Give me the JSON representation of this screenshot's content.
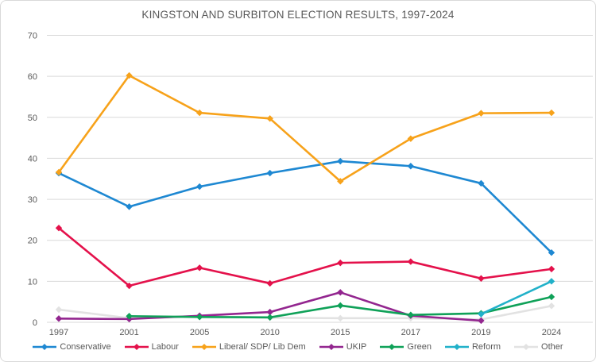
{
  "title": "KINGSTON AND SURBITON ELECTION RESULTS, 1997-2024",
  "chart_data": {
    "type": "line",
    "title": "KINGSTON AND SURBITON ELECTION RESULTS, 1997-2024",
    "xlabel": "",
    "ylabel": "",
    "ylim": [
      0,
      70
    ],
    "ytick_step": 10,
    "yticks": [
      0,
      10,
      20,
      30,
      40,
      50,
      60,
      70
    ],
    "grid": true,
    "legend_position": "bottom",
    "marker": "diamond",
    "categories": [
      "1997",
      "2001",
      "2005",
      "2010",
      "2015",
      "2017",
      "2019",
      "2024"
    ],
    "series": [
      {
        "name": "Conservative",
        "color": "#1E88D2",
        "values": [
          36.4,
          28.2,
          33.1,
          36.4,
          39.3,
          38.1,
          33.9,
          17.0
        ]
      },
      {
        "name": "Labour",
        "color": "#E4114B",
        "values": [
          23.0,
          8.9,
          13.3,
          9.5,
          14.5,
          14.8,
          10.7,
          13.0
        ]
      },
      {
        "name": "Liberal/ SDP/ Lib Dem",
        "color": "#F7A21A",
        "values": [
          36.6,
          60.2,
          51.1,
          49.7,
          34.4,
          44.8,
          51.0,
          51.1
        ]
      },
      {
        "name": "UKIP",
        "color": "#93268F",
        "values": [
          0.9,
          0.8,
          1.6,
          2.5,
          7.3,
          1.6,
          0.4,
          null
        ]
      },
      {
        "name": "Green",
        "color": "#0FA158",
        "values": [
          null,
          1.5,
          1.3,
          1.2,
          4.1,
          1.8,
          2.2,
          6.2
        ]
      },
      {
        "name": "Reform",
        "color": "#21B1C9",
        "values": [
          null,
          null,
          null,
          null,
          null,
          null,
          2.0,
          10.0
        ]
      },
      {
        "name": "Other",
        "color": "#E2E2E2",
        "values": [
          3.1,
          1.0,
          1.5,
          1.1,
          1.0,
          1.0,
          0.7,
          4.0
        ]
      }
    ]
  },
  "colors": {
    "background": "#FFFFFF",
    "border": "#D9D9D9",
    "gridline": "#D9D9D9",
    "axis_text": "#595959",
    "title_text": "#595959",
    "legend_text": "#595959"
  }
}
